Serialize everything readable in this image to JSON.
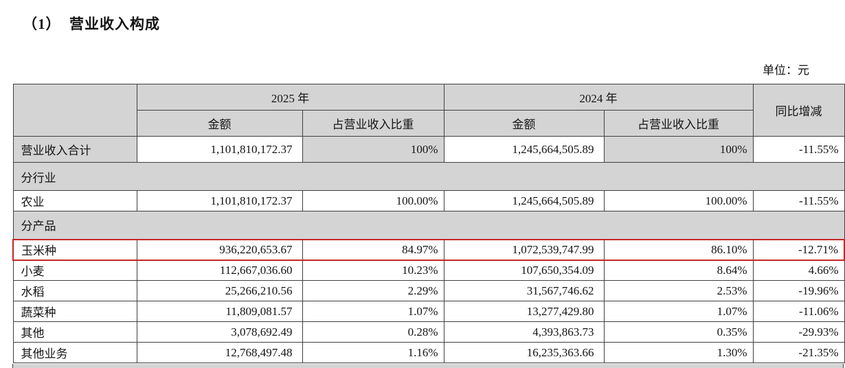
{
  "page": {
    "title": "（1）  营业收入构成",
    "unit_label": "单位：元"
  },
  "table": {
    "columns": {
      "year_2025": "2025 年",
      "year_2024": "2024 年",
      "amount": "金额",
      "share": "占营业收入比重",
      "yoy": "同比增减"
    },
    "highlight_color": "#c42727",
    "shade_color": "#d4d4d4",
    "rows": [
      {
        "type": "data",
        "label": "营业收入合计",
        "amount_2025": "1,101,810,172.37",
        "share_2025": "100%",
        "amount_2024": "1,245,664,505.89",
        "share_2024": "100%",
        "yoy": "-11.55%",
        "shaded_cells": [
          0,
          2,
          4
        ],
        "total": true
      },
      {
        "type": "section",
        "label": "分行业"
      },
      {
        "type": "data",
        "label": "农业",
        "amount_2025": "1,101,810,172.37",
        "share_2025": "100.00%",
        "amount_2024": "1,245,664,505.89",
        "share_2024": "100.00%",
        "yoy": "-11.55%"
      },
      {
        "type": "section",
        "label": "分产品"
      },
      {
        "type": "data",
        "label": "玉米种",
        "amount_2025": "936,220,653.67",
        "share_2025": "84.97%",
        "amount_2024": "1,072,539,747.99",
        "share_2024": "86.10%",
        "yoy": "-12.71%",
        "highlight": true
      },
      {
        "type": "data",
        "label": "小麦",
        "amount_2025": "112,667,036.60",
        "share_2025": "10.23%",
        "amount_2024": "107,650,354.09",
        "share_2024": "8.64%",
        "yoy": "4.66%"
      },
      {
        "type": "data",
        "label": "水稻",
        "amount_2025": "25,266,210.56",
        "share_2025": "2.29%",
        "amount_2024": "31,567,746.62",
        "share_2024": "2.53%",
        "yoy": "-19.96%"
      },
      {
        "type": "data",
        "label": "蔬菜种",
        "amount_2025": "11,809,081.57",
        "share_2025": "1.07%",
        "amount_2024": "13,277,429.80",
        "share_2024": "1.07%",
        "yoy": "-11.06%"
      },
      {
        "type": "data",
        "label": "其他",
        "amount_2025": "3,078,692.49",
        "share_2025": "0.28%",
        "amount_2024": "4,393,863.73",
        "share_2024": "0.35%",
        "yoy": "-29.93%"
      },
      {
        "type": "data",
        "label": "其他业务",
        "amount_2025": "12,768,497.48",
        "share_2025": "1.16%",
        "amount_2024": "16,235,363.66",
        "share_2024": "1.30%",
        "yoy": "-21.35%"
      }
    ]
  }
}
